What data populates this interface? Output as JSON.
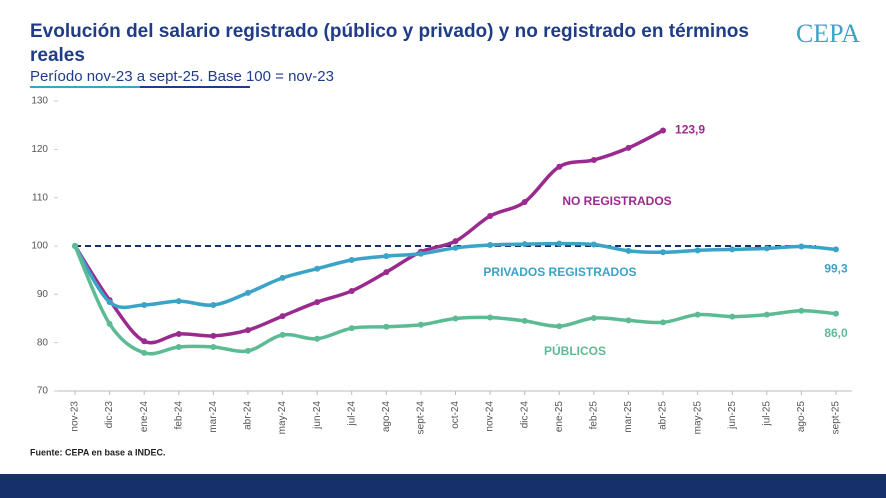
{
  "chart_data": {
    "type": "line",
    "title": "Evolución del salario registrado (público y privado) y no registrado en términos reales",
    "subtitle": "Período nov-23 a sept-25. Base 100 = nov-23",
    "source": "Fuente: CEPA en base a INDEC.",
    "logo": "CEPA",
    "categories": [
      "nov-23",
      "dic-23",
      "ene-24",
      "feb-24",
      "mar-24",
      "abr-24",
      "may-24",
      "jun-24",
      "jul-24",
      "ago-24",
      "sept-24",
      "oct-24",
      "nov-24",
      "dic-24",
      "ene-25",
      "feb-25",
      "mar-25",
      "abr-25",
      "may-25",
      "jun-25",
      "jul-25",
      "ago-25",
      "sept-25"
    ],
    "series": [
      {
        "name": "NO REGISTRADOS",
        "color": "#9b2a8f",
        "values": [
          100,
          88.8,
          80.3,
          81.8,
          81.4,
          82.6,
          85.5,
          88.4,
          90.7,
          94.6,
          98.8,
          101.0,
          106.2,
          109.1,
          116.4,
          117.8,
          120.3,
          123.9,
          null,
          null,
          null,
          null,
          null
        ],
        "value_labels": [
          null,
          null,
          null,
          null,
          null,
          null,
          null,
          null,
          null,
          null,
          null,
          null,
          null,
          null,
          null,
          null,
          null,
          "123,9",
          null,
          null,
          null,
          null,
          null
        ]
      },
      {
        "name": "PRIVADOS REGISTRADOS",
        "color": "#3aa3c7",
        "values": [
          100,
          88.4,
          87.8,
          88.6,
          87.8,
          90.3,
          93.4,
          95.3,
          97.1,
          97.9,
          98.4,
          99.6,
          100.2,
          100.4,
          100.5,
          100.3,
          99.0,
          98.7,
          99.1,
          99.3,
          99.5,
          99.9,
          99.3
        ],
        "value_labels": [
          null,
          null,
          null,
          null,
          null,
          null,
          null,
          null,
          null,
          null,
          null,
          null,
          null,
          null,
          null,
          null,
          null,
          null,
          null,
          null,
          null,
          null,
          "99,3"
        ]
      },
      {
        "name": "PÚBLICOS",
        "color": "#5dbb94",
        "values": [
          100,
          83.9,
          77.9,
          79.1,
          79.1,
          78.3,
          81.6,
          80.8,
          83.0,
          83.3,
          83.7,
          85.0,
          85.2,
          84.5,
          83.4,
          85.1,
          84.6,
          84.2,
          85.8,
          85.4,
          85.8,
          86.6,
          86.0
        ],
        "value_labels": [
          null,
          null,
          null,
          null,
          null,
          null,
          null,
          null,
          null,
          null,
          null,
          null,
          null,
          null,
          null,
          null,
          null,
          null,
          null,
          null,
          null,
          null,
          "86,0"
        ]
      }
    ],
    "reference_line": 100,
    "ylim": [
      70,
      130
    ],
    "yticks": [
      70,
      80,
      90,
      100,
      110,
      120,
      130
    ],
    "grid": false
  }
}
